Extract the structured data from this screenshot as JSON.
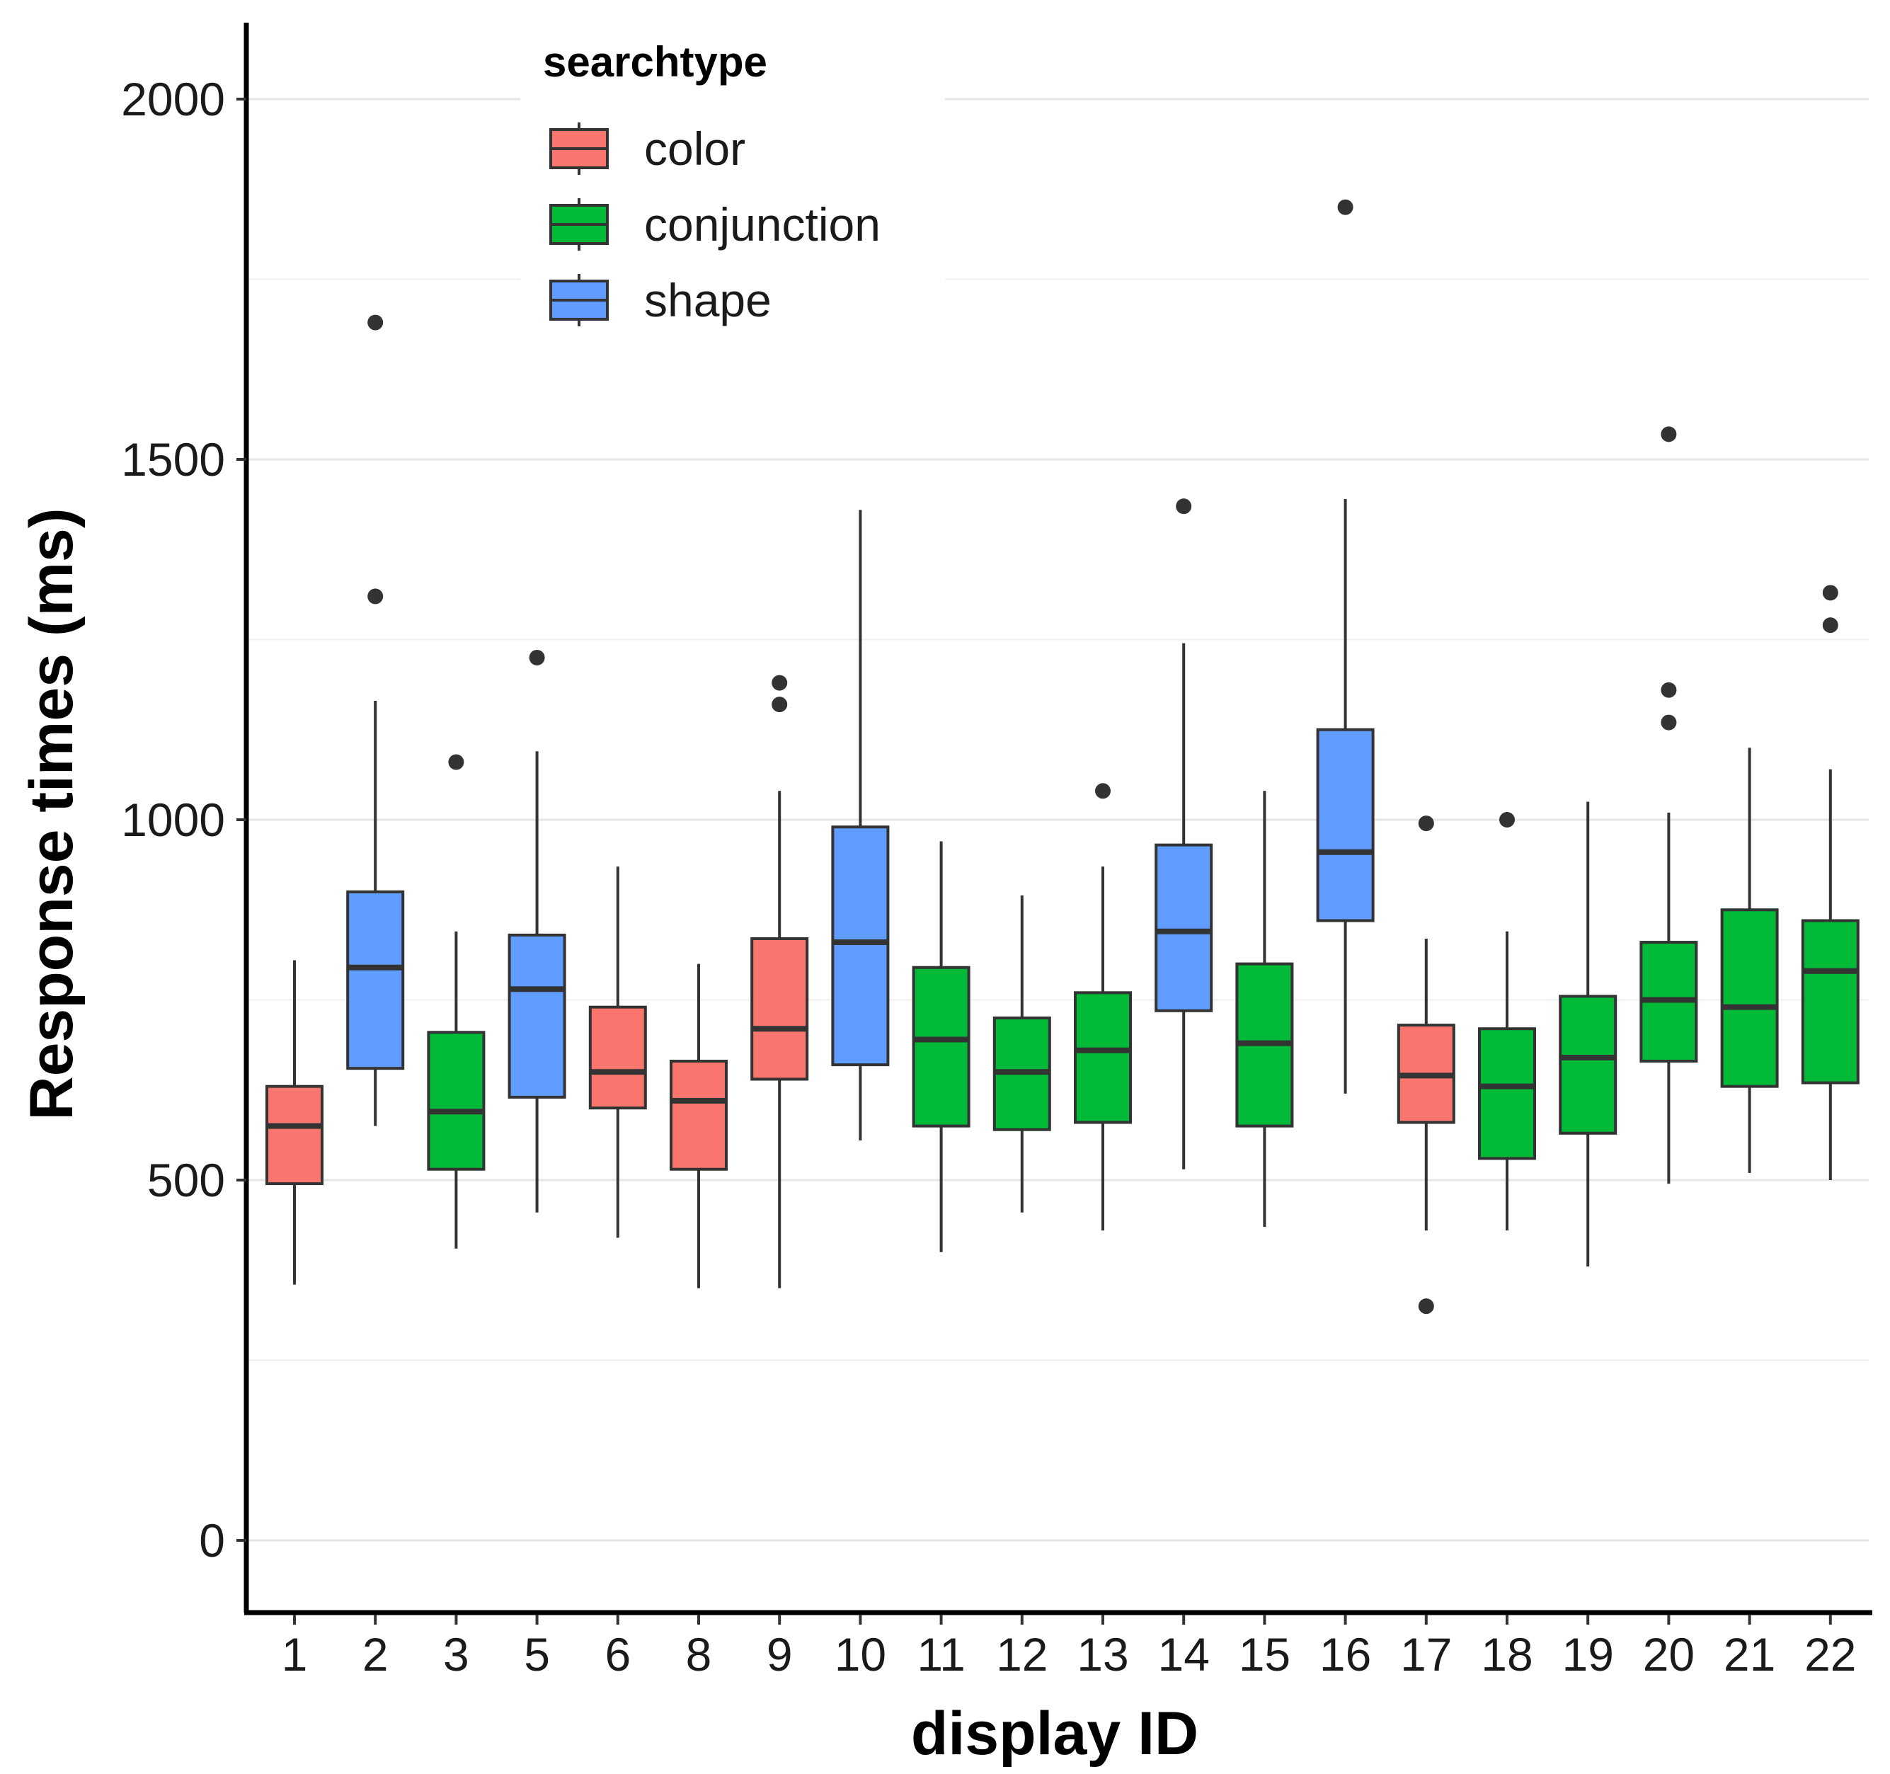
{
  "chart_data": {
    "type": "boxplot",
    "xlabel": "display ID",
    "ylabel": "Response times (ms)",
    "ylim": [
      -100,
      2100
    ],
    "yticks": [
      0,
      500,
      1000,
      1500,
      2000
    ],
    "legend": {
      "title": "searchtype",
      "position": "top-left",
      "entries": [
        {
          "label": "color",
          "color": "#F8766D"
        },
        {
          "label": "conjunction",
          "color": "#00BA38"
        },
        {
          "label": "shape",
          "color": "#619CFF"
        }
      ]
    },
    "categories": [
      "1",
      "2",
      "3",
      "5",
      "6",
      "8",
      "9",
      "10",
      "11",
      "12",
      "13",
      "14",
      "15",
      "16",
      "17",
      "18",
      "19",
      "20",
      "21",
      "22"
    ],
    "boxes": [
      {
        "id": "1",
        "group": "color",
        "whislo": 355,
        "q1": 495,
        "median": 575,
        "q3": 630,
        "whishi": 805,
        "outliers": []
      },
      {
        "id": "2",
        "group": "shape",
        "whislo": 575,
        "q1": 655,
        "median": 795,
        "q3": 900,
        "whishi": 1165,
        "outliers": [
          1690,
          1310
        ]
      },
      {
        "id": "3",
        "group": "conjunction",
        "whislo": 405,
        "q1": 515,
        "median": 595,
        "q3": 705,
        "whishi": 845,
        "outliers": [
          1080
        ]
      },
      {
        "id": "5",
        "group": "shape",
        "whislo": 455,
        "q1": 615,
        "median": 765,
        "q3": 840,
        "whishi": 1095,
        "outliers": [
          1225
        ]
      },
      {
        "id": "6",
        "group": "color",
        "whislo": 420,
        "q1": 600,
        "median": 650,
        "q3": 740,
        "whishi": 935,
        "outliers": []
      },
      {
        "id": "8",
        "group": "color",
        "whislo": 350,
        "q1": 515,
        "median": 610,
        "q3": 665,
        "whishi": 800,
        "outliers": []
      },
      {
        "id": "9",
        "group": "color",
        "whislo": 350,
        "q1": 640,
        "median": 710,
        "q3": 835,
        "whishi": 1040,
        "outliers": [
          1190,
          1160
        ]
      },
      {
        "id": "10",
        "group": "shape",
        "whislo": 555,
        "q1": 660,
        "median": 830,
        "q3": 990,
        "whishi": 1430,
        "outliers": []
      },
      {
        "id": "11",
        "group": "conjunction",
        "whislo": 400,
        "q1": 575,
        "median": 695,
        "q3": 795,
        "whishi": 970,
        "outliers": []
      },
      {
        "id": "12",
        "group": "conjunction",
        "whislo": 455,
        "q1": 570,
        "median": 650,
        "q3": 725,
        "whishi": 895,
        "outliers": []
      },
      {
        "id": "13",
        "group": "conjunction",
        "whislo": 430,
        "q1": 580,
        "median": 680,
        "q3": 760,
        "whishi": 935,
        "outliers": [
          1040
        ]
      },
      {
        "id": "14",
        "group": "shape",
        "whislo": 515,
        "q1": 735,
        "median": 845,
        "q3": 965,
        "whishi": 1245,
        "outliers": [
          1435
        ]
      },
      {
        "id": "15",
        "group": "conjunction",
        "whislo": 435,
        "q1": 575,
        "median": 690,
        "q3": 800,
        "whishi": 1040,
        "outliers": []
      },
      {
        "id": "16",
        "group": "shape",
        "whislo": 620,
        "q1": 860,
        "median": 955,
        "q3": 1125,
        "whishi": 1445,
        "outliers": [
          1850
        ]
      },
      {
        "id": "17",
        "group": "color",
        "whislo": 430,
        "q1": 580,
        "median": 645,
        "q3": 715,
        "whishi": 835,
        "outliers": [
          995,
          325
        ]
      },
      {
        "id": "18",
        "group": "conjunction",
        "whislo": 430,
        "q1": 530,
        "median": 630,
        "q3": 710,
        "whishi": 845,
        "outliers": [
          1000
        ]
      },
      {
        "id": "19",
        "group": "conjunction",
        "whislo": 380,
        "q1": 565,
        "median": 670,
        "q3": 755,
        "whishi": 1025,
        "outliers": []
      },
      {
        "id": "20",
        "group": "conjunction",
        "whislo": 495,
        "q1": 665,
        "median": 750,
        "q3": 830,
        "whishi": 1010,
        "outliers": [
          1535,
          1180,
          1135
        ]
      },
      {
        "id": "21",
        "group": "conjunction",
        "whislo": 510,
        "q1": 630,
        "median": 740,
        "q3": 875,
        "whishi": 1100,
        "outliers": []
      },
      {
        "id": "22",
        "group": "conjunction",
        "whislo": 500,
        "q1": 635,
        "median": 790,
        "q3": 860,
        "whishi": 1070,
        "outliers": [
          1315,
          1270
        ]
      }
    ]
  }
}
